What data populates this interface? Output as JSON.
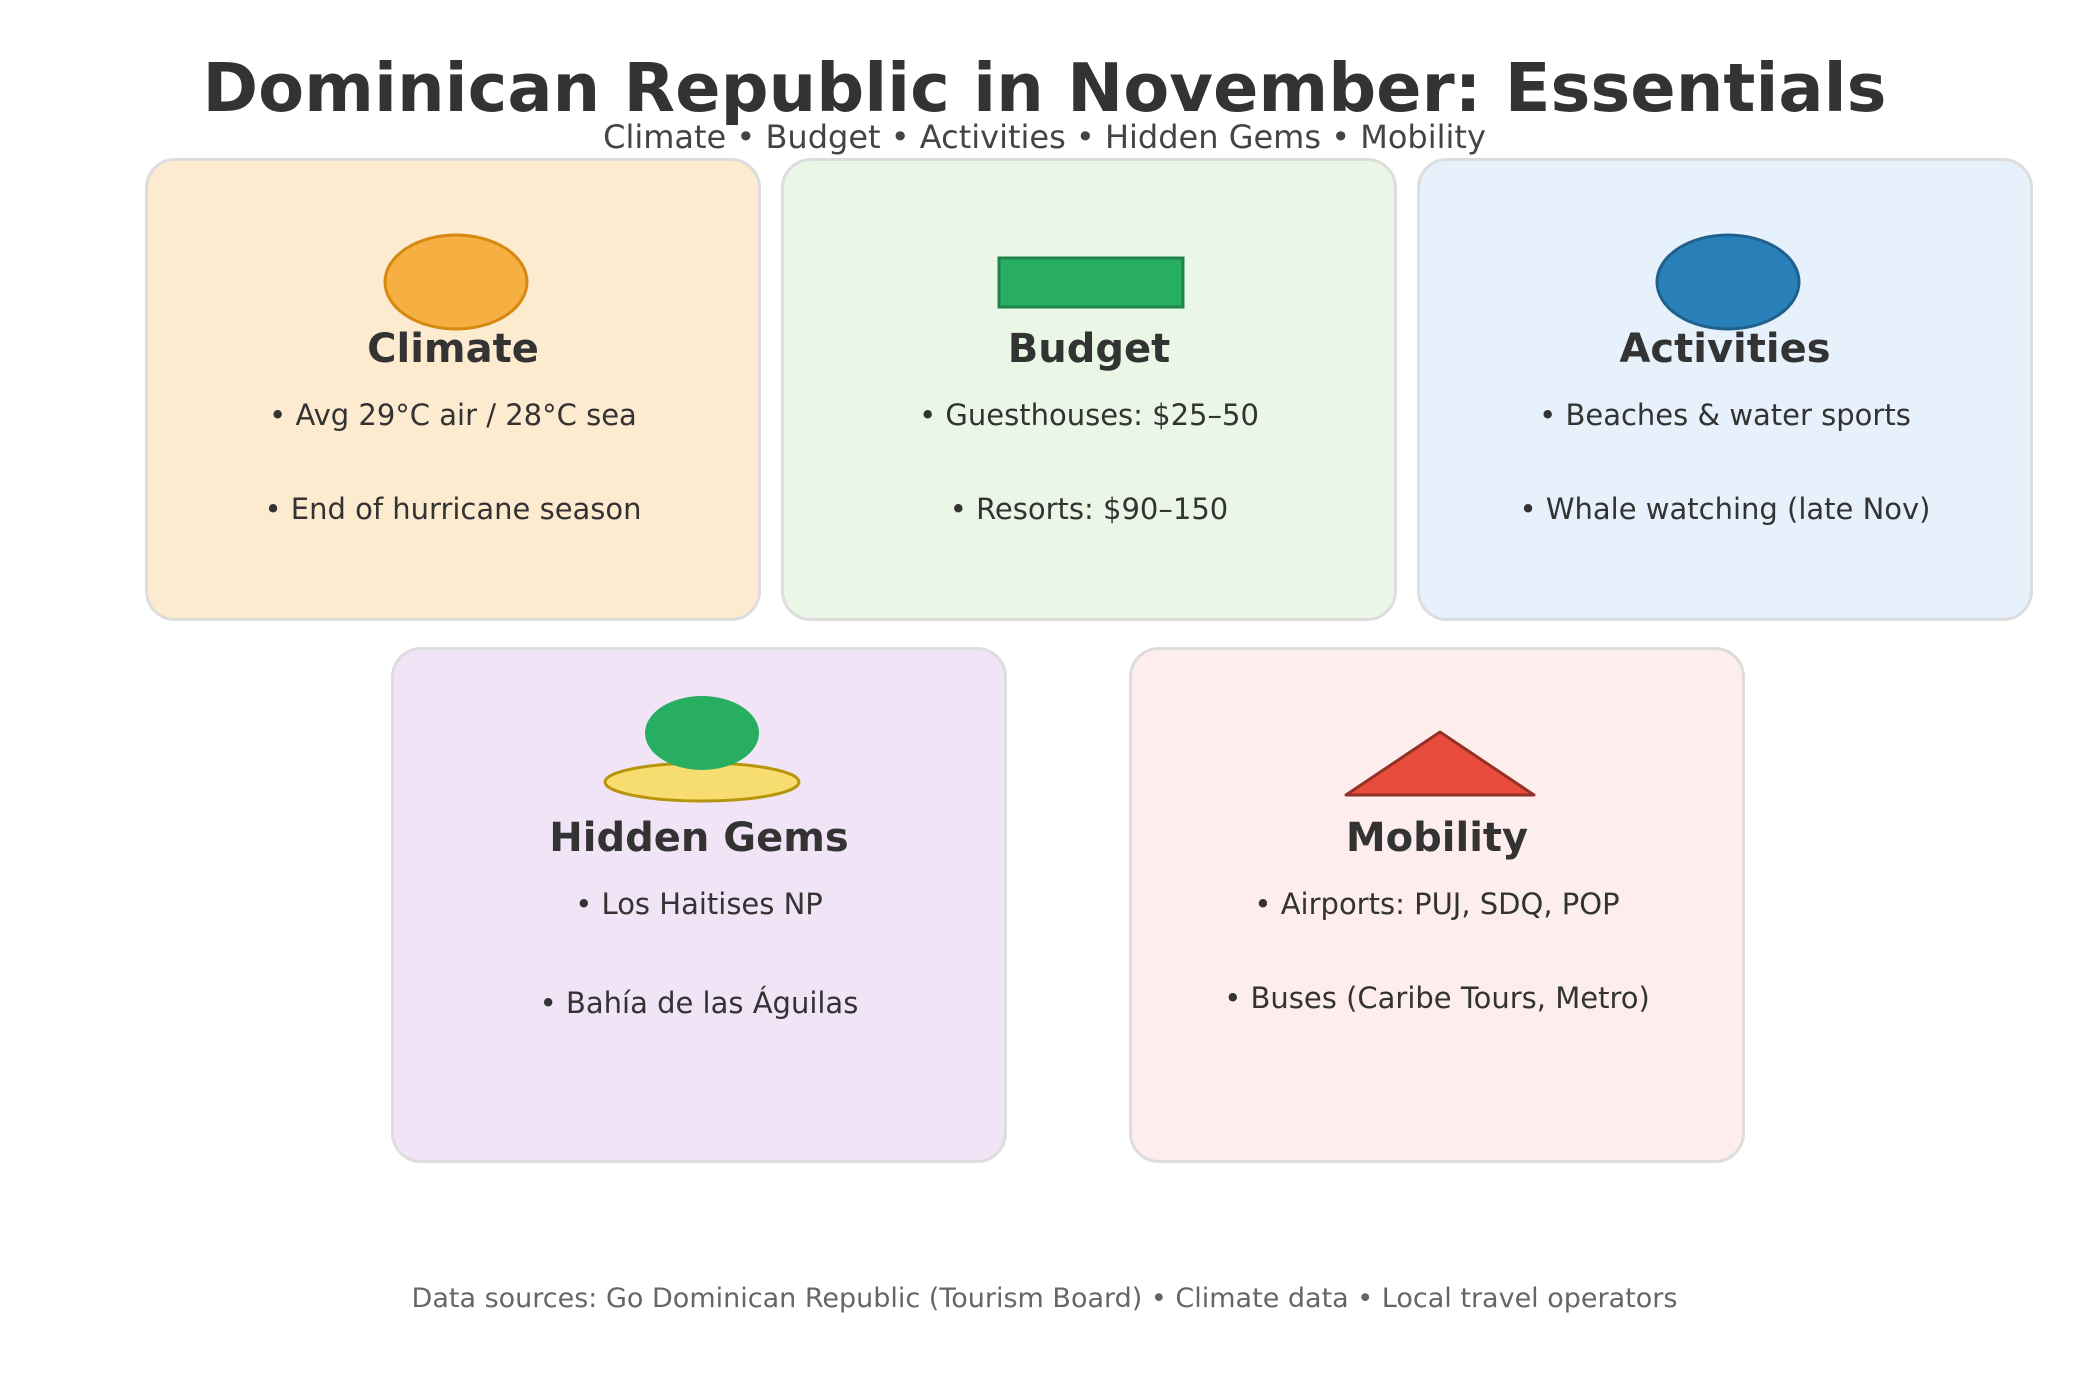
{
  "header": {
    "title": "Dominican Republic in November: Essentials",
    "subtitle": "Climate • Budget • Activities • Hidden Gems • Mobility"
  },
  "cards": {
    "climate": {
      "title": "Climate",
      "icon": "sun-icon",
      "bg": "#fdebd0",
      "accent": "#f5b041",
      "bullets": [
        "• Avg 29°C air / 28°C sea",
        "• End of hurricane season"
      ]
    },
    "budget": {
      "title": "Budget",
      "icon": "banknote-icon",
      "bg": "#eaf6e6",
      "accent": "#27ae60",
      "bullets": [
        "• Guesthouses: $25–50",
        "• Resorts: $90–150"
      ]
    },
    "activities": {
      "title": "Activities",
      "icon": "ball-icon",
      "bg": "#e6f1fb",
      "accent": "#2980b9",
      "bullets": [
        "• Beaches & water sports",
        "• Whale watching (late Nov)"
      ]
    },
    "hidden_gems": {
      "title": "Hidden Gems",
      "icon": "island-icon",
      "bg": "#f0e4f6",
      "accent": "#27ae60",
      "bullets": [
        "• Los Haitises NP",
        "• Bahía de las Águilas"
      ]
    },
    "mobility": {
      "title": "Mobility",
      "icon": "triangle-icon",
      "bg": "#fdeded",
      "accent": "#e74c3c",
      "bullets": [
        "• Airports: PUJ, SDQ, POP",
        "• Buses (Caribe Tours, Metro)"
      ]
    }
  },
  "footer": {
    "sources": "Data sources: Go Dominican Republic (Tourism Board) • Climate data • Local travel operators"
  }
}
